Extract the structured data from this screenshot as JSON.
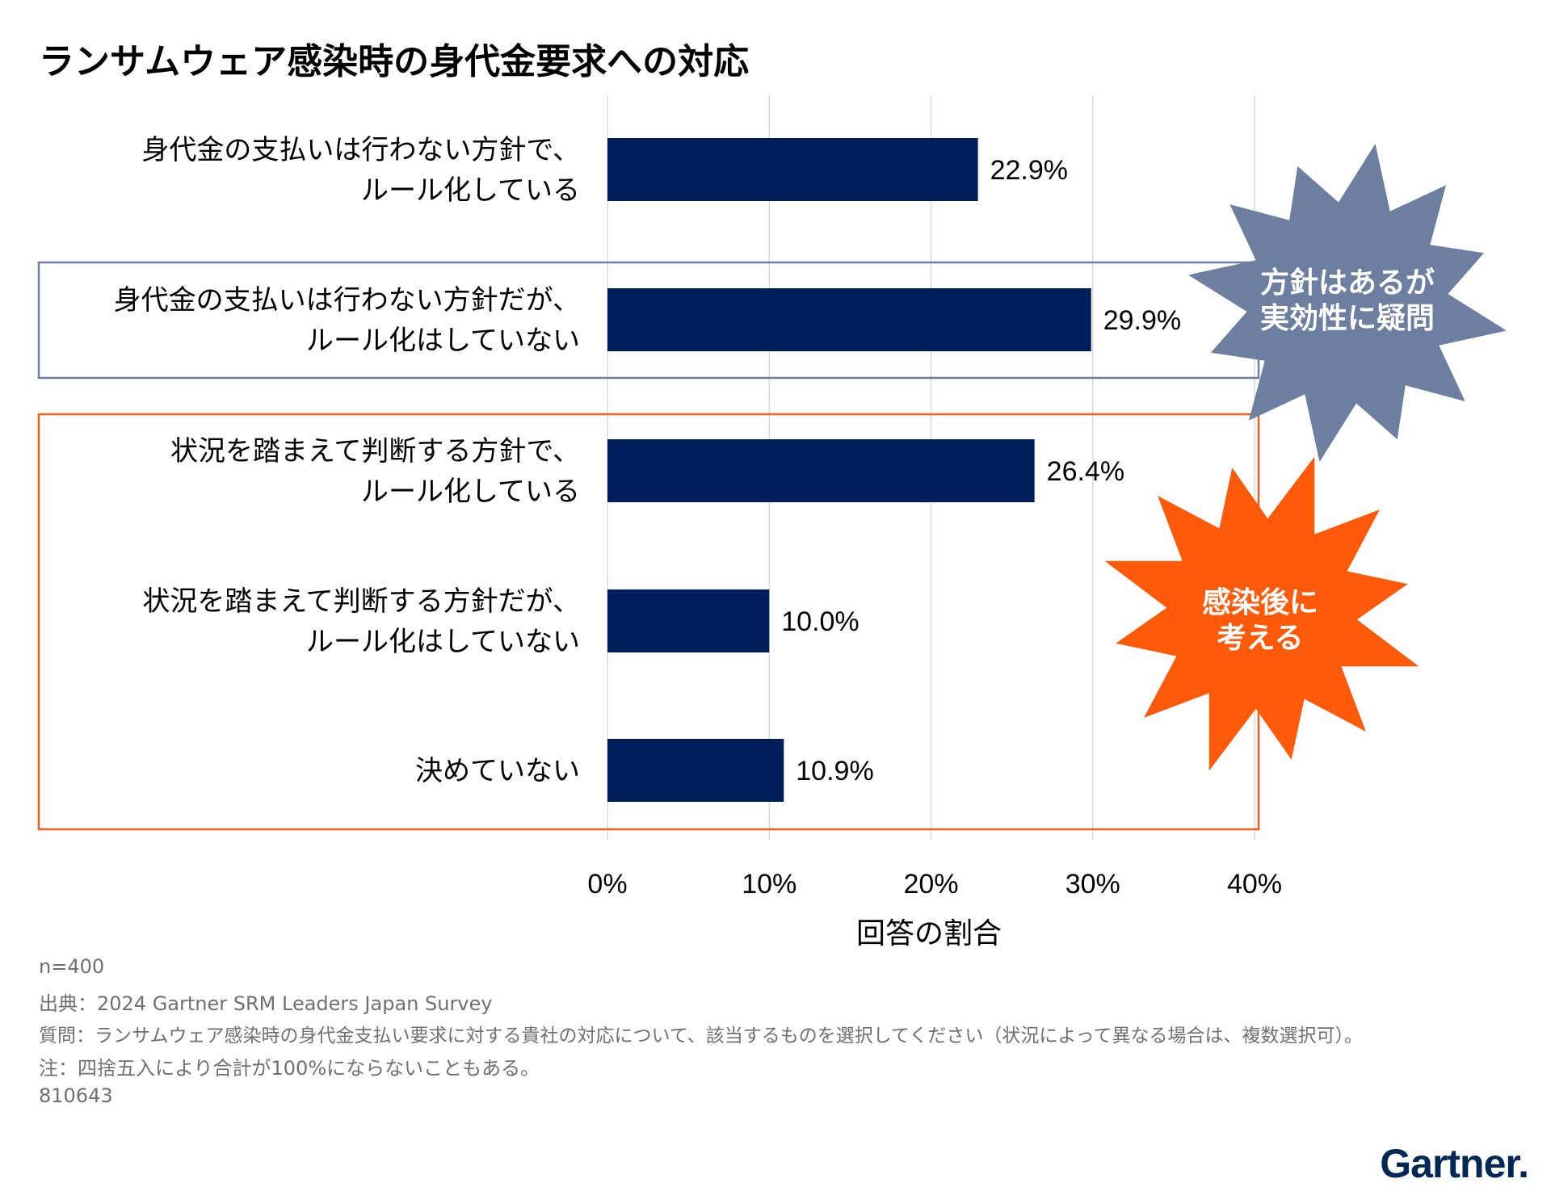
{
  "title": "ランサムウェア感染時の身代金要求への対応",
  "chart_data": {
    "type": "bar",
    "orientation": "horizontal",
    "title": "ランサムウェア感染時の身代金要求への対応",
    "xlabel": "回答の割合",
    "ylabel": "",
    "xlim": [
      0,
      40
    ],
    "ticks": [
      0,
      10,
      20,
      30,
      40
    ],
    "tick_labels": [
      "0%",
      "10%",
      "20%",
      "30%",
      "40%"
    ],
    "categories": [
      [
        "身代金の支払いは行わない方針で、",
        "ルール化している"
      ],
      [
        "身代金の支払いは行わない方針だが、",
        "ルール化はしていない"
      ],
      [
        "状況を踏まえて判断する方針で、",
        "ルール化している"
      ],
      [
        "状況を踏まえて判断する方針だが、",
        "ルール化はしていない"
      ],
      [
        "決めていない"
      ]
    ],
    "values": [
      22.9,
      29.9,
      26.4,
      10.0,
      10.9
    ],
    "value_labels": [
      "22.9%",
      "29.9%",
      "26.4%",
      "10.0%",
      "10.9%"
    ],
    "bar_color": "#001E5A",
    "grid": true,
    "annotations": [
      {
        "lines": [
          "方針はあるが",
          "実効性に疑問"
        ],
        "color": "#6C7FA0",
        "group": [
          1
        ]
      },
      {
        "lines": [
          "感染後に",
          "考える"
        ],
        "color": "#FF5A0A",
        "group": [
          2,
          3,
          4
        ]
      }
    ]
  },
  "footnotes": {
    "n": "n=400",
    "source": "出典：2024 Gartner SRM Leaders Japan Survey",
    "question": "質問：ランサムウェア感染時の身代金支払い要求に対する貴社の対応について、該当するものを選択してください（状況によって異なる場合は、複数選択可）。",
    "note": "注：四捨五入により合計が100%にならないこともある。",
    "id": "810643"
  },
  "logo": "Gartner."
}
